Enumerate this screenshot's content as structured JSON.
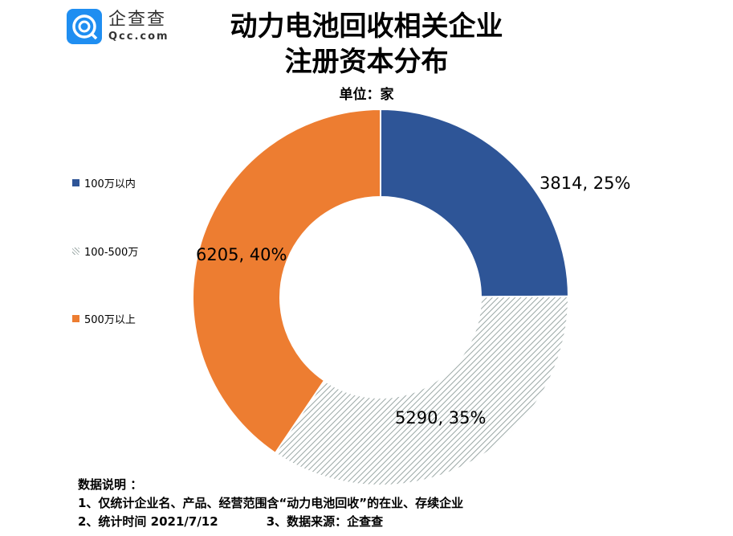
{
  "logo": {
    "name_cn": "企查查",
    "name_en": "Qcc.com",
    "color": "#1f8ef1"
  },
  "chart_data": {
    "type": "pie",
    "variant": "donut",
    "title": "动力电池回收相关企业注册资本分布",
    "title_lines": [
      "动力电池回收相关企业",
      "注册资本分布"
    ],
    "subtitle": "单位：家",
    "categories": [
      "100万以内",
      "100-500万",
      "500万以上"
    ],
    "values": [
      3814,
      5290,
      6205
    ],
    "percents": [
      25,
      35,
      40
    ],
    "data_labels": [
      "3814, 25%",
      "5290, 35%",
      "6205, 40%"
    ],
    "colors": [
      "#2e5597",
      "#b8c2c0",
      "#ed7d31"
    ],
    "patterns": [
      "solid",
      "diagonal-hatch",
      "solid"
    ],
    "legend_position": "left"
  },
  "notes": {
    "heading": "数据说明 ：",
    "line1": "1、仅统计企业名、产品、经营范围含“动力电池回收”的在业、存续企业",
    "line2a": "2、统计时间 2021/7/12",
    "line2b": "3、数据来源：企查查"
  }
}
